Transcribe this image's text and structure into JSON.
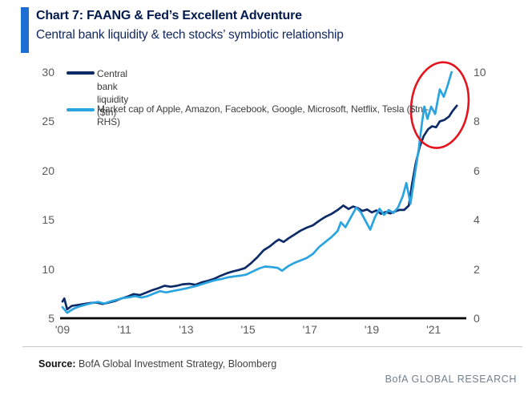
{
  "chart_data": {
    "type": "line",
    "title": "Chart 7: FAANG & Fed’s Excellent Adventure",
    "subtitle": "Central bank liquidity & tech stocks’ symbiotic relationship",
    "accent_color": "#1b6fd4",
    "grid": false,
    "legend_position": "top-left",
    "legend": [
      {
        "label": "Central bank liquidity ($tn)",
        "color": "#0d2b67",
        "axis": "left"
      },
      {
        "label": "Market cap of Apple, Amazon, Facebook, Google, Microsoft, Netflix, Tesla ($tn - RHS)",
        "color": "#2aa4e0",
        "axis": "right"
      }
    ],
    "x_ticks": [
      {
        "label": "'09",
        "year": 2009
      },
      {
        "label": "'11",
        "year": 2011
      },
      {
        "label": "'13",
        "year": 2013
      },
      {
        "label": "'15",
        "year": 2015
      },
      {
        "label": "'17",
        "year": 2017
      },
      {
        "label": "'19",
        "year": 2019
      },
      {
        "label": "'21",
        "year": 2021
      }
    ],
    "x_range": [
      2008.92,
      2022.06
    ],
    "left_axis": {
      "ticks": [
        5,
        10,
        15,
        20,
        25,
        30
      ],
      "range": [
        5,
        30
      ]
    },
    "right_axis": {
      "ticks": [
        0,
        2,
        4,
        6,
        8,
        10
      ],
      "range": [
        0,
        10
      ]
    },
    "series": [
      {
        "name": "Central bank liquidity ($tn)",
        "axis": "left",
        "color": "#0d2b67",
        "points": [
          [
            2009.0,
            6.7
          ],
          [
            2009.06,
            7.0
          ],
          [
            2009.15,
            5.9
          ],
          [
            2009.3,
            6.25
          ],
          [
            2009.5,
            6.35
          ],
          [
            2009.7,
            6.45
          ],
          [
            2009.9,
            6.55
          ],
          [
            2010.1,
            6.6
          ],
          [
            2010.3,
            6.45
          ],
          [
            2010.5,
            6.6
          ],
          [
            2010.7,
            6.75
          ],
          [
            2010.9,
            7.0
          ],
          [
            2011.1,
            7.2
          ],
          [
            2011.3,
            7.45
          ],
          [
            2011.5,
            7.35
          ],
          [
            2011.7,
            7.6
          ],
          [
            2011.9,
            7.85
          ],
          [
            2012.1,
            8.05
          ],
          [
            2012.3,
            8.3
          ],
          [
            2012.5,
            8.2
          ],
          [
            2012.7,
            8.3
          ],
          [
            2012.9,
            8.45
          ],
          [
            2013.1,
            8.5
          ],
          [
            2013.3,
            8.4
          ],
          [
            2013.5,
            8.65
          ],
          [
            2013.7,
            8.8
          ],
          [
            2013.9,
            9.0
          ],
          [
            2014.1,
            9.3
          ],
          [
            2014.3,
            9.55
          ],
          [
            2014.5,
            9.75
          ],
          [
            2014.7,
            9.9
          ],
          [
            2014.9,
            10.1
          ],
          [
            2015.1,
            10.6
          ],
          [
            2015.3,
            11.2
          ],
          [
            2015.5,
            11.9
          ],
          [
            2015.7,
            12.3
          ],
          [
            2015.9,
            12.8
          ],
          [
            2016.0,
            13.0
          ],
          [
            2016.15,
            12.75
          ],
          [
            2016.3,
            13.1
          ],
          [
            2016.5,
            13.5
          ],
          [
            2016.7,
            13.9
          ],
          [
            2016.9,
            14.2
          ],
          [
            2017.1,
            14.45
          ],
          [
            2017.3,
            14.9
          ],
          [
            2017.5,
            15.3
          ],
          [
            2017.7,
            15.6
          ],
          [
            2017.9,
            16.0
          ],
          [
            2018.08,
            16.45
          ],
          [
            2018.25,
            16.1
          ],
          [
            2018.4,
            16.35
          ],
          [
            2018.55,
            16.2
          ],
          [
            2018.7,
            15.9
          ],
          [
            2018.85,
            16.05
          ],
          [
            2019.0,
            15.75
          ],
          [
            2019.15,
            15.95
          ],
          [
            2019.3,
            15.6
          ],
          [
            2019.45,
            15.8
          ],
          [
            2019.6,
            15.65
          ],
          [
            2019.75,
            15.85
          ],
          [
            2019.9,
            16.0
          ],
          [
            2020.05,
            16.0
          ],
          [
            2020.2,
            16.45
          ],
          [
            2020.3,
            18.6
          ],
          [
            2020.42,
            20.7
          ],
          [
            2020.55,
            22.4
          ],
          [
            2020.68,
            23.5
          ],
          [
            2020.82,
            24.2
          ],
          [
            2020.95,
            24.5
          ],
          [
            2021.08,
            24.4
          ],
          [
            2021.2,
            25.0
          ],
          [
            2021.35,
            25.15
          ],
          [
            2021.5,
            25.5
          ],
          [
            2021.6,
            26.0
          ],
          [
            2021.75,
            26.6
          ]
        ]
      },
      {
        "name": "Market cap of Apple, Amazon, Facebook, Google, Microsoft, Netflix, Tesla ($tn - RHS)",
        "axis": "right",
        "color": "#2aa4e0",
        "points": [
          [
            2009.0,
            0.45
          ],
          [
            2009.15,
            0.22
          ],
          [
            2009.35,
            0.38
          ],
          [
            2009.55,
            0.48
          ],
          [
            2009.75,
            0.55
          ],
          [
            2009.95,
            0.62
          ],
          [
            2010.15,
            0.66
          ],
          [
            2010.35,
            0.6
          ],
          [
            2010.55,
            0.68
          ],
          [
            2010.75,
            0.75
          ],
          [
            2010.95,
            0.82
          ],
          [
            2011.15,
            0.85
          ],
          [
            2011.35,
            0.9
          ],
          [
            2011.55,
            0.84
          ],
          [
            2011.75,
            0.9
          ],
          [
            2011.95,
            1.0
          ],
          [
            2012.15,
            1.1
          ],
          [
            2012.35,
            1.05
          ],
          [
            2012.55,
            1.1
          ],
          [
            2012.75,
            1.15
          ],
          [
            2012.95,
            1.2
          ],
          [
            2013.15,
            1.26
          ],
          [
            2013.35,
            1.32
          ],
          [
            2013.55,
            1.4
          ],
          [
            2013.75,
            1.48
          ],
          [
            2013.95,
            1.55
          ],
          [
            2014.15,
            1.6
          ],
          [
            2014.35,
            1.66
          ],
          [
            2014.55,
            1.7
          ],
          [
            2014.75,
            1.73
          ],
          [
            2014.95,
            1.78
          ],
          [
            2015.15,
            1.9
          ],
          [
            2015.35,
            2.02
          ],
          [
            2015.55,
            2.1
          ],
          [
            2015.75,
            2.08
          ],
          [
            2015.95,
            2.05
          ],
          [
            2016.1,
            1.93
          ],
          [
            2016.3,
            2.12
          ],
          [
            2016.5,
            2.25
          ],
          [
            2016.7,
            2.35
          ],
          [
            2016.9,
            2.45
          ],
          [
            2017.1,
            2.62
          ],
          [
            2017.3,
            2.9
          ],
          [
            2017.5,
            3.1
          ],
          [
            2017.7,
            3.3
          ],
          [
            2017.9,
            3.55
          ],
          [
            2018.0,
            3.9
          ],
          [
            2018.15,
            3.7
          ],
          [
            2018.3,
            4.05
          ],
          [
            2018.5,
            4.5
          ],
          [
            2018.65,
            4.3
          ],
          [
            2018.8,
            3.95
          ],
          [
            2018.95,
            3.6
          ],
          [
            2019.1,
            4.1
          ],
          [
            2019.25,
            4.45
          ],
          [
            2019.4,
            4.2
          ],
          [
            2019.55,
            4.4
          ],
          [
            2019.7,
            4.28
          ],
          [
            2019.85,
            4.5
          ],
          [
            2020.0,
            4.95
          ],
          [
            2020.12,
            5.5
          ],
          [
            2020.25,
            4.65
          ],
          [
            2020.4,
            5.9
          ],
          [
            2020.52,
            6.9
          ],
          [
            2020.62,
            7.9
          ],
          [
            2020.7,
            8.6
          ],
          [
            2020.8,
            8.1
          ],
          [
            2020.92,
            8.6
          ],
          [
            2021.05,
            8.3
          ],
          [
            2021.2,
            9.3
          ],
          [
            2021.33,
            9.0
          ],
          [
            2021.45,
            9.45
          ],
          [
            2021.58,
            10.0
          ]
        ]
      }
    ],
    "annotation": {
      "type": "ellipse",
      "description": "red circle highlighting the 2020-21 spike in both lines",
      "center_year": 2021.2,
      "center_rhs_value": 8.66,
      "radius_years": 0.92,
      "radius_rhs_value": 1.75,
      "rotate_deg": 8,
      "color": "#e4131c"
    }
  },
  "footer": {
    "source_label": "Source:",
    "source_text": "BofA Global Investment Strategy, Bloomberg",
    "brand": "BofA GLOBAL RESEARCH"
  }
}
